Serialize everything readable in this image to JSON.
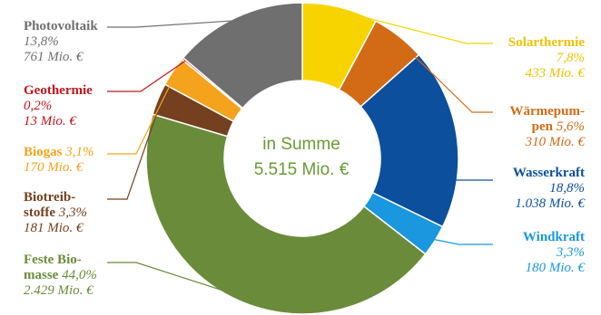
{
  "chart_data": {
    "type": "pie",
    "center_label": {
      "line1": "in Summe",
      "line2": "5.515 Mio. €"
    },
    "slices": [
      {
        "name_lines": [
          "Solarthermie"
        ],
        "pct": 7.8,
        "pct_text": "7,8%",
        "value": 433,
        "value_text": "433 Mio. €",
        "color": "#f7d400"
      },
      {
        "name_lines": [
          "Wärmepum-",
          "pen"
        ],
        "pct": 5.6,
        "pct_text": "5,6%",
        "value": 310,
        "value_text": "310 Mio. €",
        "color": "#d36b16"
      },
      {
        "name_lines": [
          "Wasserkraft"
        ],
        "pct": 18.8,
        "pct_text": "18,8%",
        "value": 1038,
        "value_text": "1.038 Mio. €",
        "color": "#0c4f9c"
      },
      {
        "name_lines": [
          "Windkraft"
        ],
        "pct": 3.3,
        "pct_text": "3,3%",
        "value": 180,
        "value_text": "180 Mio. €",
        "color": "#1a97de"
      },
      {
        "name_lines": [
          "Feste Bio-",
          "masse"
        ],
        "pct": 44.0,
        "pct_text": "44,0%",
        "value": 2429,
        "value_text": "2.429 Mio. €",
        "color": "#6a8c3a"
      },
      {
        "name_lines": [
          "Biotreib-",
          "stoffe"
        ],
        "pct": 3.3,
        "pct_text": "3,3%",
        "value": 181,
        "value_text": "181 Mio. €",
        "color": "#74401f"
      },
      {
        "name_lines": [
          "Biogas"
        ],
        "pct": 3.1,
        "pct_text": "3,1%",
        "value": 170,
        "value_text": "170 Mio. €",
        "color": "#f5a31c"
      },
      {
        "name_lines": [
          "Geothermie"
        ],
        "pct": 0.2,
        "pct_text": "0,2%",
        "value": 13,
        "value_text": "13 Mio. €",
        "color": "#c0171e"
      },
      {
        "name_lines": [
          "Photovoltaik"
        ],
        "pct": 13.8,
        "pct_text": "13,8%",
        "value": 761,
        "value_text": "761 Mio. €",
        "color": "#6f6f6f"
      }
    ]
  }
}
